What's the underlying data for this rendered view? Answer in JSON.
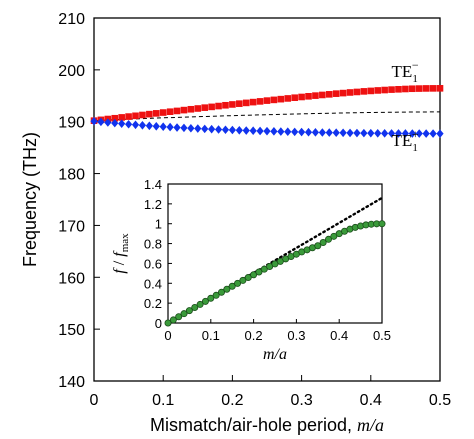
{
  "chart_data": [
    {
      "type": "scatter",
      "title": "",
      "xlabel": "Mismatch/air-hole period, ",
      "xlabel_italic": "m/a",
      "ylabel": "Frequency (THz)",
      "xlim": [
        0,
        0.5
      ],
      "ylim": [
        140,
        210
      ],
      "xticks": [
        "0",
        "0.1",
        "0.2",
        "0.3",
        "0.4",
        "0.5"
      ],
      "yticks": [
        "140",
        "150",
        "160",
        "170",
        "180",
        "190",
        "200",
        "210"
      ],
      "grid": false,
      "series": [
        {
          "name": "TE1−",
          "marker": "square",
          "color": "#ee1111",
          "x": [
            0,
            0.01,
            0.02,
            0.03,
            0.04,
            0.05,
            0.06,
            0.07,
            0.08,
            0.09,
            0.1,
            0.11,
            0.12,
            0.13,
            0.14,
            0.15,
            0.16,
            0.17,
            0.18,
            0.19,
            0.2,
            0.21,
            0.22,
            0.23,
            0.24,
            0.25,
            0.26,
            0.27,
            0.28,
            0.29,
            0.3,
            0.31,
            0.32,
            0.33,
            0.34,
            0.35,
            0.36,
            0.37,
            0.38,
            0.39,
            0.4,
            0.41,
            0.42,
            0.43,
            0.44,
            0.45,
            0.46,
            0.47,
            0.48,
            0.49,
            0.5
          ],
          "y": [
            190.2,
            190.36,
            190.52,
            190.67,
            190.83,
            190.99,
            191.14,
            191.3,
            191.46,
            191.61,
            191.77,
            191.93,
            192.08,
            192.24,
            192.4,
            192.55,
            192.71,
            192.86,
            193.02,
            193.17,
            193.33,
            193.48,
            193.63,
            193.78,
            193.92,
            194.07,
            194.21,
            194.35,
            194.49,
            194.63,
            194.77,
            194.9,
            195.03,
            195.16,
            195.28,
            195.41,
            195.52,
            195.64,
            195.74,
            195.85,
            195.94,
            196.03,
            196.11,
            196.19,
            196.25,
            196.31,
            196.36,
            196.39,
            196.42,
            196.43,
            196.44
          ]
        },
        {
          "name": "TE1+",
          "marker": "diamond",
          "color": "#1133ee",
          "x": [
            0,
            0.01,
            0.02,
            0.03,
            0.04,
            0.05,
            0.06,
            0.07,
            0.08,
            0.09,
            0.1,
            0.11,
            0.12,
            0.13,
            0.14,
            0.15,
            0.16,
            0.17,
            0.18,
            0.19,
            0.2,
            0.21,
            0.22,
            0.23,
            0.24,
            0.25,
            0.26,
            0.27,
            0.28,
            0.29,
            0.3,
            0.31,
            0.32,
            0.33,
            0.34,
            0.35,
            0.36,
            0.37,
            0.38,
            0.39,
            0.4,
            0.41,
            0.42,
            0.43,
            0.44,
            0.45,
            0.46,
            0.47,
            0.48,
            0.49,
            0.5
          ],
          "y": [
            190.1,
            189.97,
            189.85,
            189.73,
            189.62,
            189.51,
            189.41,
            189.31,
            189.21,
            189.12,
            189.04,
            188.96,
            188.88,
            188.81,
            188.74,
            188.68,
            188.62,
            188.56,
            188.5,
            188.45,
            188.4,
            188.35,
            188.3,
            188.26,
            188.22,
            188.18,
            188.14,
            188.1,
            188.07,
            188.04,
            188.01,
            187.98,
            187.95,
            187.92,
            187.9,
            187.88,
            187.86,
            187.84,
            187.82,
            187.8,
            187.79,
            187.77,
            187.76,
            187.75,
            187.74,
            187.73,
            187.72,
            187.72,
            187.71,
            187.71,
            187.7
          ]
        },
        {
          "name": "",
          "style": "dashed",
          "color": "#000000",
          "x": [
            0,
            0.05,
            0.1,
            0.15,
            0.2,
            0.25,
            0.3,
            0.35,
            0.4,
            0.45,
            0.5
          ],
          "y": [
            190.2,
            190.5,
            190.75,
            190.97,
            191.17,
            191.35,
            191.52,
            191.66,
            191.78,
            191.86,
            191.9
          ]
        }
      ],
      "annotations": [
        {
          "base": "TE",
          "sub": "1",
          "sup": "−",
          "x": 0.43,
          "y": 198.6
        },
        {
          "base": "TE",
          "sub": "1",
          "sup": "+",
          "x": 0.43,
          "y": 185.3
        }
      ]
    },
    {
      "type": "scatter",
      "title": "",
      "ylabel_parts": {
        "f": "f",
        "sep": " / ",
        "fmax": "f",
        "sub": "max"
      },
      "xlabel": "m/a",
      "xlim": [
        0,
        0.5
      ],
      "ylim": [
        0,
        1.4
      ],
      "xticks": [
        "0",
        "0.1",
        "0.2",
        "0.3",
        "0.4",
        "0.5"
      ],
      "yticks": [
        "0",
        "0.2",
        "0.4",
        "0.6",
        "0.8",
        "1",
        "1.2",
        "1.4"
      ],
      "grid": false,
      "series": [
        {
          "name": "",
          "marker": "circle",
          "color": "#3a9a3a",
          "x": [
            0,
            0.0125,
            0.025,
            0.0375,
            0.05,
            0.0625,
            0.075,
            0.0875,
            0.1,
            0.1125,
            0.125,
            0.1375,
            0.15,
            0.1625,
            0.175,
            0.1875,
            0.2,
            0.2125,
            0.225,
            0.2375,
            0.25,
            0.2625,
            0.275,
            0.2875,
            0.3,
            0.3125,
            0.325,
            0.3375,
            0.35,
            0.3625,
            0.375,
            0.3875,
            0.4,
            0.4125,
            0.425,
            0.4375,
            0.45,
            0.4625,
            0.475,
            0.4875,
            0.5
          ],
          "y": [
            0,
            0.031,
            0.063,
            0.094,
            0.125,
            0.156,
            0.187,
            0.218,
            0.249,
            0.279,
            0.31,
            0.34,
            0.37,
            0.399,
            0.429,
            0.458,
            0.486,
            0.514,
            0.542,
            0.569,
            0.595,
            0.621,
            0.646,
            0.67,
            0.693,
            0.716,
            0.737,
            0.758,
            0.778,
            0.811,
            0.843,
            0.873,
            0.9,
            0.924,
            0.945,
            0.963,
            0.977,
            0.988,
            0.995,
            0.999,
            1.0
          ]
        },
        {
          "name": "",
          "style": "dotted",
          "color": "#000000",
          "x": [
            0,
            0.5
          ],
          "y": [
            0,
            1.26
          ]
        }
      ]
    }
  ]
}
